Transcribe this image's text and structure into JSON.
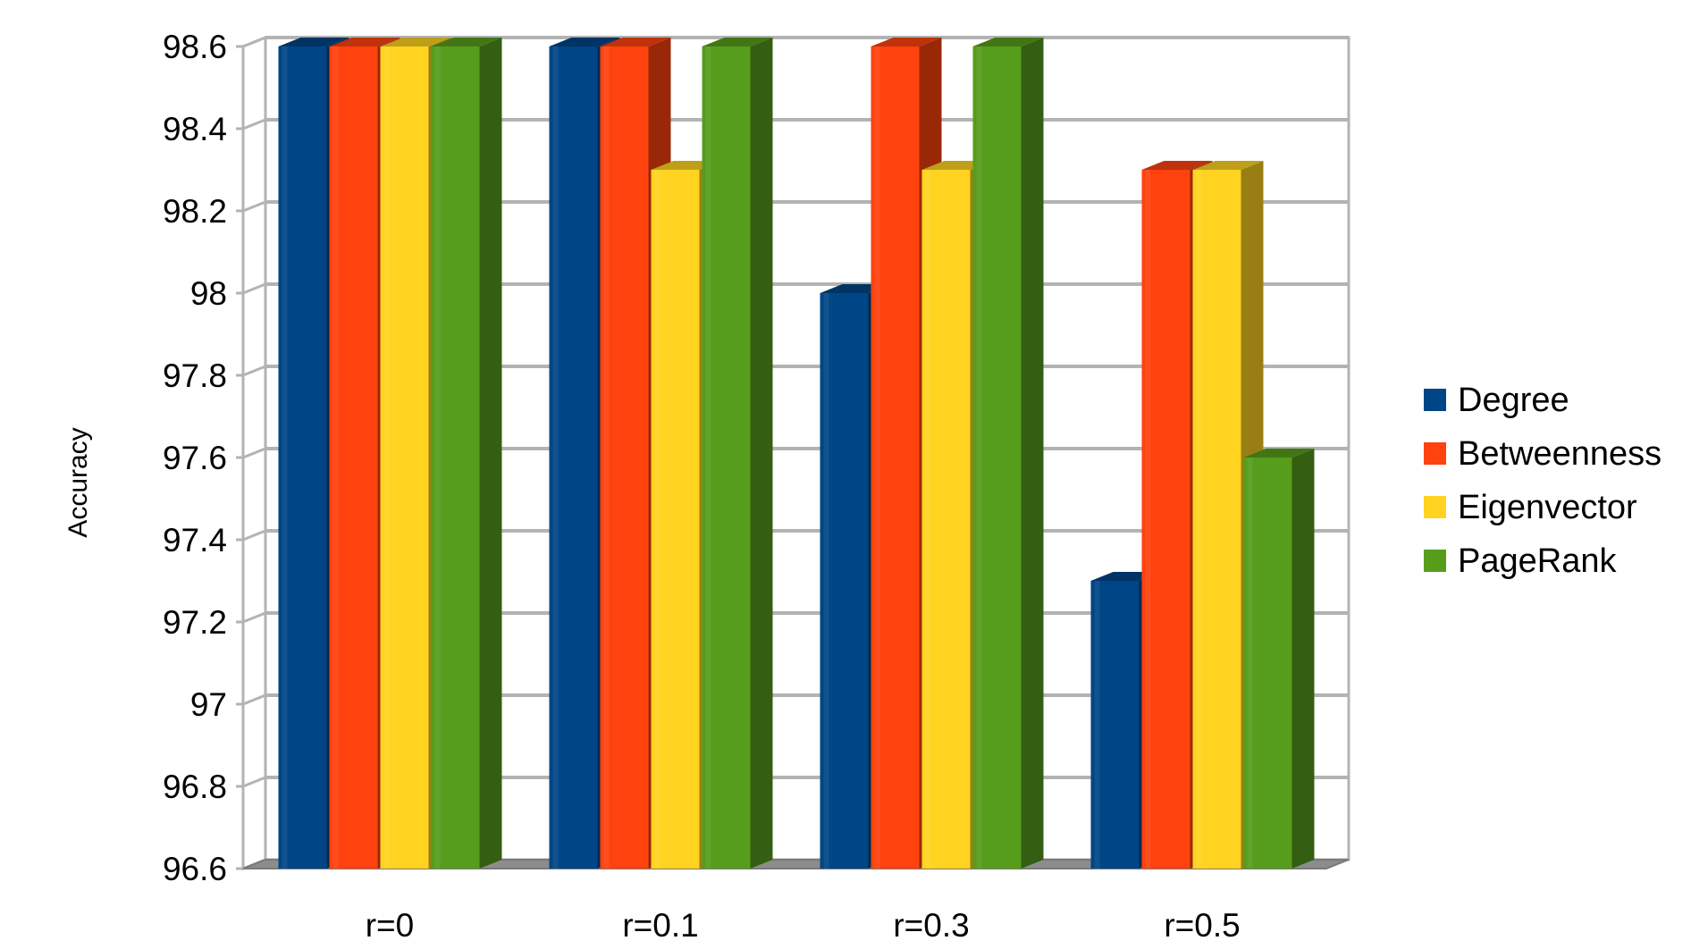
{
  "chart_data": {
    "type": "bar",
    "title": "",
    "xlabel": "",
    "ylabel": "Accuracy",
    "ylim": [
      96.6,
      98.6
    ],
    "yticks": [
      "96.6",
      "96.8",
      "97",
      "97.2",
      "97.4",
      "97.6",
      "97.8",
      "98",
      "98.2",
      "98.4",
      "98.6"
    ],
    "categories": [
      "r=0",
      "r=0.1",
      "r=0.3",
      "r=0.5"
    ],
    "series": [
      {
        "name": "Degree",
        "color": "#004586",
        "values": [
          98.6,
          98.6,
          98.0,
          97.3
        ]
      },
      {
        "name": "Betweenness",
        "color": "#ff420e",
        "values": [
          98.6,
          98.6,
          98.6,
          98.3
        ]
      },
      {
        "name": "Eigenvector",
        "color": "#ffd320",
        "values": [
          98.6,
          98.3,
          98.3,
          98.3
        ]
      },
      {
        "name": "PageRank",
        "color": "#579d1c",
        "values": [
          98.6,
          98.6,
          98.6,
          97.6
        ]
      }
    ],
    "grid": true,
    "legend_position": "right",
    "style": "3d"
  }
}
